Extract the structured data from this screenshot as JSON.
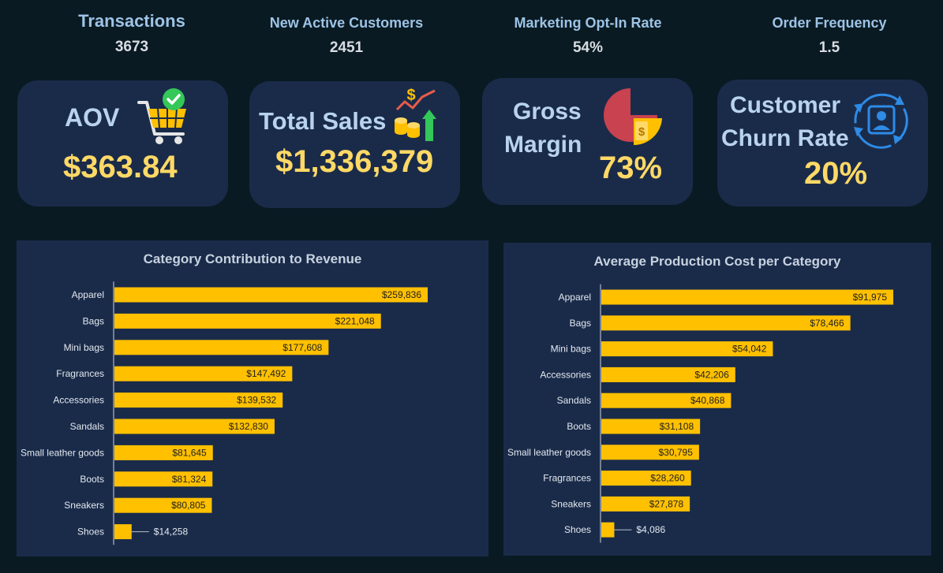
{
  "kpis": {
    "transactions": {
      "label": "Transactions",
      "value": "3673"
    },
    "new_customers": {
      "label": "New Active Customers",
      "value": "2451"
    },
    "optin": {
      "label": "Marketing Opt-In Rate",
      "value": "54%"
    },
    "frequency": {
      "label": "Order Frequency",
      "value": "1.5"
    }
  },
  "cards": {
    "aov": {
      "label": "AOV",
      "value": "$363.84",
      "icon": "shopping-cart-icon"
    },
    "sales": {
      "label": "Total Sales",
      "value": "$1,336,379",
      "icon": "coins-growth-icon"
    },
    "margin": {
      "label_line1": "Gross",
      "label_line2": "Margin",
      "value": "73%",
      "icon": "pie-dollar-icon"
    },
    "churn": {
      "label_line1": "Customer",
      "label_line2": "Churn Rate",
      "value": "20%",
      "icon": "customer-cycle-icon"
    }
  },
  "colors": {
    "background": "#0a1a22",
    "card": "#1a2b4a",
    "bar": "#ffc000",
    "value_text": "#ffd966",
    "label_text": "#b9d3ee"
  },
  "chart_data": [
    {
      "type": "bar",
      "orientation": "horizontal",
      "title": "Category Contribution to Revenue",
      "categories": [
        "Apparel",
        "Bags",
        "Mini bags",
        "Fragrances",
        "Accessories",
        "Sandals",
        "Small leather goods",
        "Boots",
        "Sneakers",
        "Shoes"
      ],
      "values": [
        259836,
        221048,
        177608,
        147492,
        139532,
        132830,
        81645,
        81324,
        80805,
        14258
      ],
      "labels": [
        "$259,836",
        "$221,048",
        "$177,608",
        "$147,492",
        "$139,532",
        "$132,830",
        "$81,645",
        "$81,324",
        "$80,805",
        "$14,258"
      ],
      "xlim": [
        0,
        259836
      ],
      "grid": false
    },
    {
      "type": "bar",
      "orientation": "horizontal",
      "title": "Average Production Cost per Category",
      "categories": [
        "Apparel",
        "Bags",
        "Mini bags",
        "Accessories",
        "Sandals",
        "Boots",
        "Small leather goods",
        "Fragrances",
        "Sneakers",
        "Shoes"
      ],
      "values": [
        91975,
        78466,
        54042,
        42206,
        40868,
        31108,
        30795,
        28260,
        27878,
        4086
      ],
      "labels": [
        "$91,975",
        "$78,466",
        "$54,042",
        "$42,206",
        "$40,868",
        "$31,108",
        "$30,795",
        "$28,260",
        "$27,878",
        "$4,086"
      ],
      "xlim": [
        0,
        91975
      ],
      "grid": false
    }
  ]
}
